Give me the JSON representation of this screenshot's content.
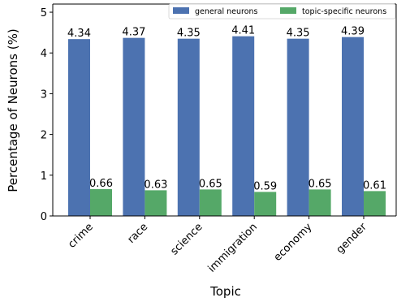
{
  "chart_data": {
    "type": "bar",
    "title": "",
    "xlabel": "Topic",
    "ylabel": "Percentage of Neurons (%)",
    "ylim": [
      0,
      5.2
    ],
    "yticks": [
      0,
      1,
      2,
      3,
      4,
      5
    ],
    "grid": false,
    "legend_position": "top-right",
    "categories": [
      "crime",
      "race",
      "science",
      "immigration",
      "economy",
      "gender"
    ],
    "series": [
      {
        "name": "general neurons",
        "color": "#4c72b0",
        "values": [
          4.34,
          4.37,
          4.35,
          4.41,
          4.35,
          4.39
        ]
      },
      {
        "name": "topic-specific neurons",
        "color": "#55a868",
        "values": [
          0.66,
          0.63,
          0.65,
          0.59,
          0.65,
          0.61
        ]
      }
    ]
  }
}
